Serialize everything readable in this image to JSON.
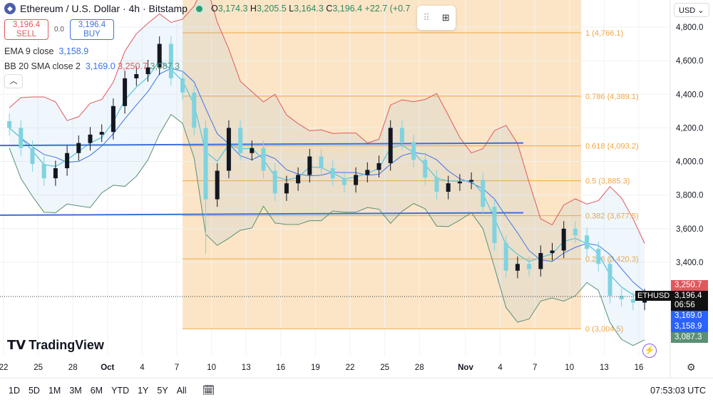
{
  "header": {
    "title": "Ethereum / U.S. Dollar · 4h · Bitstamp",
    "open_label": "O",
    "open": "3,174.3",
    "high_label": "H",
    "high": "3,205.5",
    "low_label": "L",
    "low": "3,164.3",
    "close_label": "C",
    "close": "3,196.4",
    "change": "+22.7 (+0.7"
  },
  "trade": {
    "sell_price": "3,196.4",
    "sell_label": "SELL",
    "spread": "0.0",
    "buy_price": "3,196.4",
    "buy_label": "BUY"
  },
  "indicators": {
    "ema_label": "EMA 9 close",
    "ema_value": "3,158.9",
    "bb_label": "BB 20 SMA close 2",
    "bb_basis": "3,169.0",
    "bb_upper": "3,250.7",
    "bb_lower": "3,087.3"
  },
  "currency": "USD",
  "symbol_tag": "ETHUSD",
  "price_tags": {
    "upper": "3,250.7",
    "last": "3,196.4",
    "countdown": "06:56",
    "basis": "3,169.0",
    "ema": "3,158.9",
    "lower": "3,087.3"
  },
  "brand": "TradingView",
  "ranges": [
    "1D",
    "5D",
    "1M",
    "3M",
    "6M",
    "YTD",
    "1Y",
    "5Y",
    "All"
  ],
  "clock": "07:53:03 UTC",
  "colors": {
    "up": "#131722",
    "accent": "#3d73e8",
    "upper_band": "#e0585d",
    "lower_band": "#5a8f74",
    "fib": "#f0a742",
    "fib_fill": "#fbe5c6"
  },
  "chart_data": {
    "type": "candlestick",
    "title": "Ethereum / U.S. Dollar · 4h · Bitstamp",
    "y_ticks": [
      "4,800.0",
      "4,600.0",
      "4,400.0",
      "4,200.0",
      "4,000.0",
      "3,800.0",
      "3,600.0",
      "3,400.0"
    ],
    "y_tick_values": [
      4800,
      4600,
      4400,
      4200,
      4000,
      3800,
      3600,
      3400
    ],
    "ylim": [
      2900,
      4860
    ],
    "x_ticks": [
      "22",
      "25",
      "28",
      "Oct",
      "4",
      "7",
      "10",
      "13",
      "16",
      "19",
      "22",
      "25",
      "28",
      "Nov",
      "4",
      "7",
      "10",
      "13",
      "16"
    ],
    "x_tick_days": [
      0,
      3,
      6,
      9,
      12,
      15,
      18,
      21,
      24,
      27,
      30,
      33,
      36,
      40,
      43,
      46,
      49,
      52,
      55
    ],
    "closes": [
      4200,
      4080,
      3985,
      3900,
      3960,
      4050,
      4110,
      4160,
      4176,
      4330,
      4495,
      4520,
      4560,
      4700,
      4495,
      4410,
      4200,
      3775,
      3945,
      4200,
      4050,
      4080,
      3945,
      3810,
      3870,
      3920,
      4030,
      3960,
      3900,
      3860,
      3920,
      3950,
      3990,
      4200,
      4115,
      4010,
      3905,
      3820,
      3870,
      3880,
      3890,
      3730,
      3515,
      3350,
      3390,
      3360,
      3455,
      3470,
      3600,
      3560,
      3480,
      3390,
      3200,
      3180,
      3160,
      3196.4
    ],
    "notable_low": {
      "day": 17,
      "price": 3450
    },
    "fib_levels": [
      {
        "ratio": "1",
        "price": 4766.1,
        "label": "1 (4,766.1)"
      },
      {
        "ratio": "0.786",
        "price": 4389.1,
        "label": "0.786 (4,389.1)"
      },
      {
        "ratio": "0.618",
        "price": 4093.2,
        "label": "0.618 (4,093.2)"
      },
      {
        "ratio": "0.5",
        "price": 3885.3,
        "label": "0.5 (3,885.3)"
      },
      {
        "ratio": "0.382",
        "price": 3677.5,
        "label": "0.382 (3,677.5)"
      },
      {
        "ratio": "0.236",
        "price": 3420.3,
        "label": "0.236 (3,420.3)"
      },
      {
        "ratio": "0",
        "price": 3004.5,
        "label": "0 (3,004.5)"
      }
    ],
    "fib_range_days": [
      15.5,
      50
    ],
    "trend_lines": [
      {
        "from": [
          -1,
          4095
        ],
        "to": [
          45,
          4110
        ]
      },
      {
        "from": [
          -1,
          3680
        ],
        "to": [
          45,
          3695
        ]
      }
    ],
    "last_price": 3196.4
  }
}
